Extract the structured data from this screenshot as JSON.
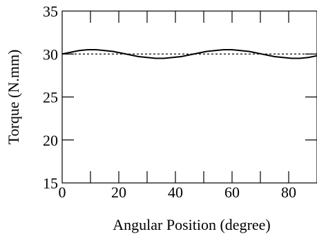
{
  "chart_data": {
    "type": "line",
    "xlabel": "Angular Position (degree)",
    "ylabel": "Torque (N.mm)",
    "xlim": [
      0,
      90
    ],
    "ylim": [
      15,
      35
    ],
    "xticks": [
      0,
      20,
      40,
      60,
      80
    ],
    "yticks": [
      15,
      20,
      25,
      30,
      35
    ],
    "grid": false,
    "series": [
      {
        "style": "solid",
        "color": "#000000",
        "x": [
          0,
          3,
          6,
          9,
          12,
          15,
          18,
          21,
          24,
          27,
          30,
          33,
          36,
          39,
          42,
          45,
          48,
          51,
          54,
          57,
          60,
          63,
          66,
          69,
          72,
          75,
          78,
          81,
          84,
          87,
          90
        ],
        "y": [
          30.0,
          30.2,
          30.4,
          30.5,
          30.5,
          30.4,
          30.3,
          30.1,
          29.9,
          29.7,
          29.6,
          29.5,
          29.5,
          29.6,
          29.7,
          29.9,
          30.1,
          30.3,
          30.4,
          30.5,
          30.5,
          30.4,
          30.3,
          30.1,
          29.9,
          29.7,
          29.6,
          29.5,
          29.5,
          29.6,
          29.8
        ]
      },
      {
        "style": "dashed",
        "color": "#000000",
        "x": [
          0,
          90
        ],
        "y": [
          30.0,
          30.0
        ]
      }
    ]
  }
}
